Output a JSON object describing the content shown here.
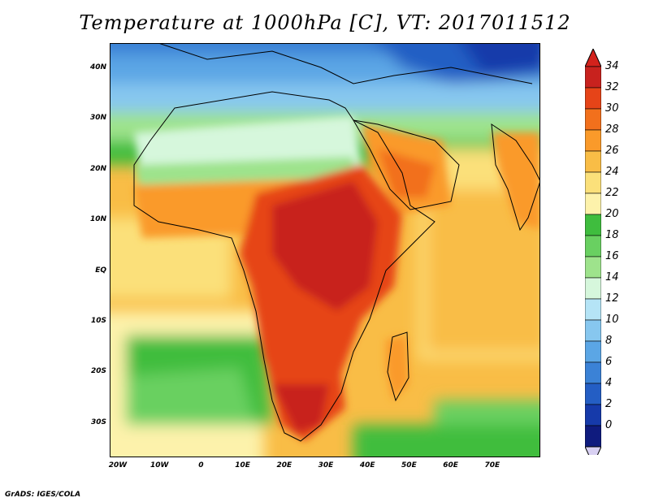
{
  "title": "Temperature at 1000hPa [C], VT: 2017011512",
  "credit": "GrADS: IGES/COLA",
  "map": {
    "type": "filled-contour",
    "variable": "Temperature at 1000hPa",
    "units": "C",
    "valid_time": "2017011512",
    "lon_range": [
      -23,
      80
    ],
    "lat_range": [
      -37,
      45
    ],
    "lat_ticks": [
      "40N",
      "30N",
      "20N",
      "10N",
      "EQ",
      "10S",
      "20S",
      "30S"
    ],
    "lon_ticks": [
      "20W",
      "10W",
      "0",
      "10E",
      "20E",
      "30E",
      "40E",
      "50E",
      "60E",
      "70E"
    ]
  },
  "colorbar": {
    "labels": [
      "34",
      "32",
      "30",
      "28",
      "26",
      "24",
      "22",
      "20",
      "18",
      "16",
      "14",
      "12",
      "10",
      "8",
      "6",
      "4",
      "2",
      "0"
    ],
    "colors": [
      "#c8221e",
      "#e64418",
      "#f2701c",
      "#fa9a2a",
      "#f9bd46",
      "#fbe07a",
      "#fdf2ab",
      "#3fbd3e",
      "#69d061",
      "#9ee38c",
      "#d6f7dc",
      "#b5e4f6",
      "#87c7ef",
      "#5ba6e5",
      "#3b82d6",
      "#245ec4",
      "#163aaa",
      "#0f1b7e"
    ],
    "end_top": "#d3221c",
    "end_bottom": "#d8d0f2"
  }
}
